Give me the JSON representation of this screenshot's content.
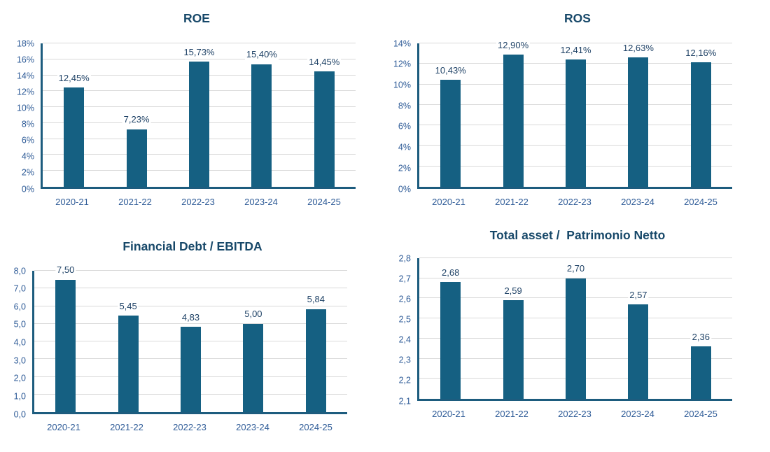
{
  "colors": {
    "bar_fill": "#156082",
    "axis_line": "#1D5C7E",
    "gridline": "#D9D9D9",
    "title_text": "#174869",
    "tick_label_text": "#2E5B97",
    "data_label_text": "#1F4266",
    "background": "#FFFFFF"
  },
  "chart_data": [
    {
      "type": "bar",
      "title": "ROE",
      "categories": [
        "2020-21",
        "2021-22",
        "2022-23",
        "2023-24",
        "2024-25"
      ],
      "values": [
        12.45,
        7.23,
        15.73,
        15.4,
        14.45
      ],
      "data_labels": [
        "12,45%",
        "7,23%",
        "15,73%",
        "15,40%",
        "14,45%"
      ],
      "ylim": [
        0,
        18
      ],
      "yticks": [
        {
          "v": 0,
          "label": "0%"
        },
        {
          "v": 2,
          "label": "2%"
        },
        {
          "v": 4,
          "label": "4%"
        },
        {
          "v": 6,
          "label": "6%"
        },
        {
          "v": 8,
          "label": "8%"
        },
        {
          "v": 10,
          "label": "10%"
        },
        {
          "v": 12,
          "label": "12%"
        },
        {
          "v": 14,
          "label": "14%"
        },
        {
          "v": 16,
          "label": "16%"
        },
        {
          "v": 18,
          "label": "18%"
        }
      ],
      "grid": true,
      "legend": "none"
    },
    {
      "type": "bar",
      "title": "ROS",
      "categories": [
        "2020-21",
        "2021-22",
        "2022-23",
        "2023-24",
        "2024-25"
      ],
      "values": [
        10.43,
        12.9,
        12.41,
        12.63,
        12.16
      ],
      "data_labels": [
        "10,43%",
        "12,90%",
        "12,41%",
        "12,63%",
        "12,16%"
      ],
      "ylim": [
        0,
        14
      ],
      "yticks": [
        {
          "v": 0,
          "label": "0%"
        },
        {
          "v": 2,
          "label": "2%"
        },
        {
          "v": 4,
          "label": "4%"
        },
        {
          "v": 6,
          "label": "6%"
        },
        {
          "v": 8,
          "label": "8%"
        },
        {
          "v": 10,
          "label": "10%"
        },
        {
          "v": 12,
          "label": "12%"
        },
        {
          "v": 14,
          "label": "14%"
        }
      ],
      "grid": true,
      "legend": "none"
    },
    {
      "type": "bar",
      "title": "Financial Debt / EBITDA",
      "categories": [
        "2020-21",
        "2021-22",
        "2022-23",
        "2023-24",
        "2024-25"
      ],
      "values": [
        7.5,
        5.45,
        4.83,
        5.0,
        5.84
      ],
      "data_labels": [
        "7,50",
        "5,45",
        "4,83",
        "5,00",
        "5,84"
      ],
      "ylim": [
        0,
        8
      ],
      "yticks": [
        {
          "v": 0,
          "label": "0,0"
        },
        {
          "v": 1,
          "label": "1,0"
        },
        {
          "v": 2,
          "label": "2,0"
        },
        {
          "v": 3,
          "label": "3,0"
        },
        {
          "v": 4,
          "label": "4,0"
        },
        {
          "v": 5,
          "label": "5,0"
        },
        {
          "v": 6,
          "label": "6,0"
        },
        {
          "v": 7,
          "label": "7,0"
        },
        {
          "v": 8,
          "label": "8,0"
        }
      ],
      "grid": true,
      "legend": "none"
    },
    {
      "type": "bar",
      "title": "Total asset /  Patrimonio Netto",
      "categories": [
        "2020-21",
        "2021-22",
        "2022-23",
        "2023-24",
        "2024-25"
      ],
      "values": [
        2.68,
        2.59,
        2.7,
        2.57,
        2.36
      ],
      "data_labels": [
        "2,68",
        "2,59",
        "2,70",
        "2,57",
        "2,36"
      ],
      "ylim": [
        2.1,
        2.8
      ],
      "yticks": [
        {
          "v": 2.1,
          "label": "2,1"
        },
        {
          "v": 2.2,
          "label": "2,2"
        },
        {
          "v": 2.3,
          "label": "2,3"
        },
        {
          "v": 2.4,
          "label": "2,4"
        },
        {
          "v": 2.5,
          "label": "2,5"
        },
        {
          "v": 2.6,
          "label": "2,6"
        },
        {
          "v": 2.7,
          "label": "2,7"
        },
        {
          "v": 2.8,
          "label": "2,8"
        }
      ],
      "grid": true,
      "legend": "none"
    }
  ]
}
